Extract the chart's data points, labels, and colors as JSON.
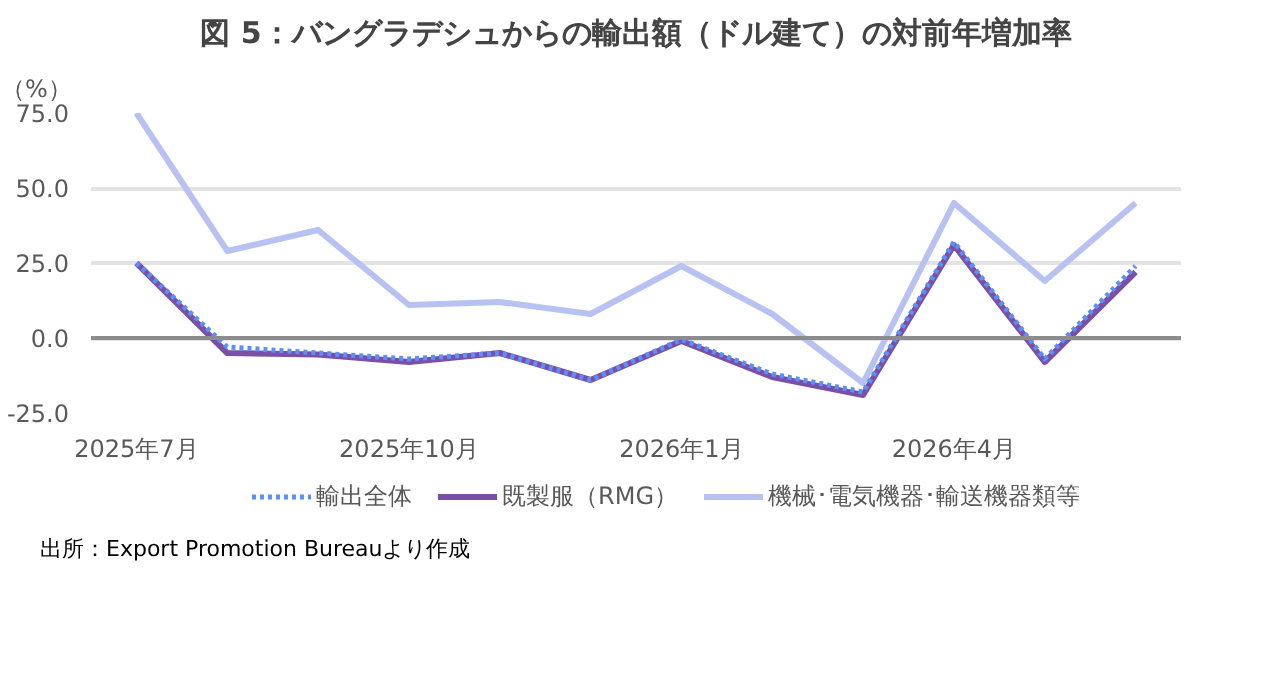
{
  "chart_data": {
    "type": "line",
    "title": "図 5：バングラデシュからの輸出額（ドル建て）の対前年増加率",
    "ylabel": "（%）",
    "categories": [
      "2025年7月",
      null,
      null,
      "2025年10月",
      null,
      null,
      "2026年1月",
      null,
      null,
      "2026年4月",
      null,
      null
    ],
    "series": [
      {
        "name": "輸出全体",
        "color": "#5b8ff9",
        "line_style": "dotted",
        "values": [
          25,
          -3,
          -5,
          -7,
          -5,
          -14,
          -0.5,
          -12,
          -18,
          32,
          -7,
          24
        ]
      },
      {
        "name": "既製服（RMG）",
        "color": "#7b4fa6",
        "line_style": "solid",
        "values": [
          25,
          -5,
          -5.5,
          -8,
          -5,
          -14,
          -1,
          -13,
          -19,
          31,
          -8,
          22
        ]
      },
      {
        "name": "機械･電気機器･輸送機器類等",
        "color": "#b8c2f2",
        "line_style": "solid",
        "values": [
          75,
          29,
          36,
          11,
          12,
          8,
          24,
          8,
          -15,
          45,
          19,
          45
        ]
      }
    ],
    "ylim": [
      -25,
      75
    ],
    "yticks": [
      {
        "value": -25,
        "label": "-25.0"
      },
      {
        "value": 0,
        "label": "0.0"
      },
      {
        "value": 25,
        "label": "25.0"
      },
      {
        "value": 50,
        "label": "50.0"
      },
      {
        "value": 75,
        "label": "75.0"
      }
    ],
    "grid": "y",
    "legend": "bottom",
    "marker": "none",
    "annotations": [
      "出所：Export Promotion Bureauより作成"
    ]
  }
}
